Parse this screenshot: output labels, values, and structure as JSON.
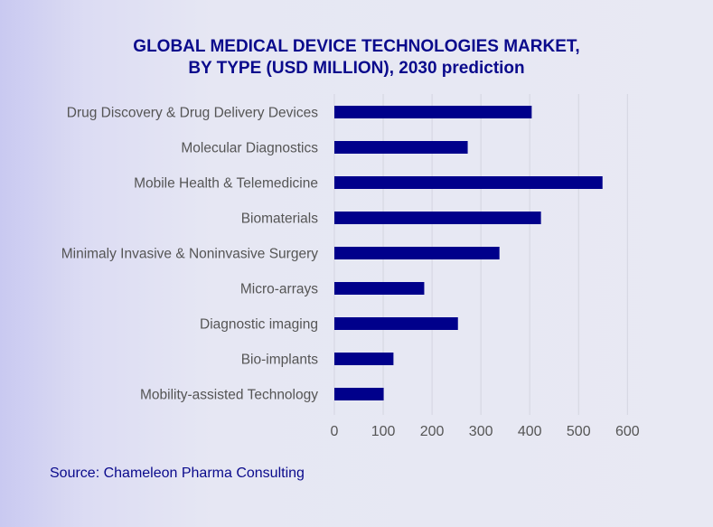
{
  "chart_data": {
    "type": "bar",
    "orientation": "horizontal",
    "title": "GLOBAL MEDICAL DEVICE TECHNOLOGIES MARKET,",
    "subtitle": "BY TYPE (USD MILLION), 2030 prediction",
    "categories": [
      "Drug Discovery & Drug Delivery Devices",
      "Molecular Diagnostics",
      "Mobile Health & Telemedicine",
      "Biomaterials",
      "Minimaly Invasive & Noninvasive Surgery",
      "Micro-arrays",
      "Diagnostic imaging",
      "Bio-implants",
      "Mobility-assisted Technology"
    ],
    "values": [
      404,
      273,
      549,
      423,
      338,
      184,
      253,
      121,
      101
    ],
    "xlim": [
      0,
      600
    ],
    "xticks": [
      0,
      100,
      200,
      300,
      400,
      500,
      600
    ],
    "xlabel": "",
    "ylabel": "",
    "grid": true,
    "bar_color": "#00008b"
  },
  "source": "Source:  Chameleon Pharma Consulting"
}
